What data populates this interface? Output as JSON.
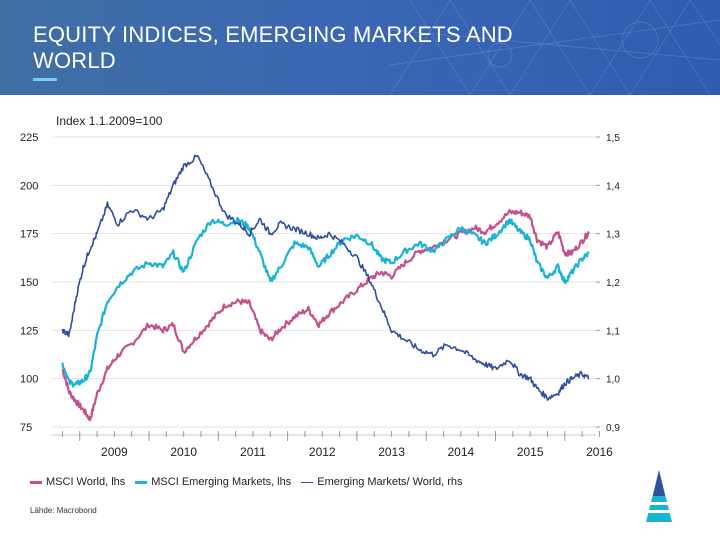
{
  "header": {
    "title_line1": "EQUITY INDICES, EMERGING MARKETS AND",
    "title_line2": "WORLD"
  },
  "chart_data": {
    "type": "line",
    "subtitle": "Index 1.1.2009=100",
    "x_tick_labels": [
      "2009",
      "2010",
      "2011",
      "2012",
      "2013",
      "2014",
      "2015",
      "2016"
    ],
    "y_left": {
      "ticks": [
        "225",
        "200",
        "175",
        "150",
        "125",
        "100",
        "75"
      ],
      "ylim": [
        75,
        225
      ]
    },
    "y_right": {
      "ticks": [
        "1,5",
        "1,4",
        "1,3",
        "1,2",
        "1,1",
        "1,0",
        "0,9"
      ],
      "ylim": [
        0.9,
        1.5
      ]
    },
    "grid": true,
    "legend_position": "bottom",
    "series": [
      {
        "name": "MSCI World, lhs",
        "color": "#c4508c",
        "axis": "left",
        "points": [
          [
            2008.75,
            105
          ],
          [
            2008.85,
            93
          ],
          [
            2008.95,
            88
          ],
          [
            2009.05,
            84
          ],
          [
            2009.15,
            79
          ],
          [
            2009.25,
            92
          ],
          [
            2009.4,
            105
          ],
          [
            2009.55,
            112
          ],
          [
            2009.75,
            118
          ],
          [
            2010.0,
            128
          ],
          [
            2010.2,
            125
          ],
          [
            2010.35,
            128
          ],
          [
            2010.5,
            114
          ],
          [
            2010.7,
            122
          ],
          [
            2010.9,
            130
          ],
          [
            2011.1,
            138
          ],
          [
            2011.3,
            140
          ],
          [
            2011.45,
            139
          ],
          [
            2011.6,
            125
          ],
          [
            2011.75,
            120
          ],
          [
            2011.9,
            126
          ],
          [
            2012.1,
            132
          ],
          [
            2012.3,
            136
          ],
          [
            2012.45,
            128
          ],
          [
            2012.6,
            134
          ],
          [
            2012.8,
            140
          ],
          [
            2013.0,
            146
          ],
          [
            2013.2,
            152
          ],
          [
            2013.35,
            155
          ],
          [
            2013.5,
            153
          ],
          [
            2013.7,
            160
          ],
          [
            2013.9,
            166
          ],
          [
            2014.1,
            168
          ],
          [
            2014.3,
            172
          ],
          [
            2014.5,
            175
          ],
          [
            2014.7,
            178
          ],
          [
            2014.85,
            176
          ],
          [
            2015.0,
            180
          ],
          [
            2015.2,
            186
          ],
          [
            2015.35,
            186
          ],
          [
            2015.5,
            184
          ],
          [
            2015.6,
            172
          ],
          [
            2015.75,
            168
          ],
          [
            2015.9,
            176
          ],
          [
            2016.0,
            165
          ],
          [
            2016.1,
            165
          ],
          [
            2016.25,
            171
          ],
          [
            2016.35,
            176
          ]
        ]
      },
      {
        "name": "MSCI Emerging Markets, lhs",
        "color": "#1ab3d6",
        "axis": "left",
        "points": [
          [
            2008.75,
            108
          ],
          [
            2008.85,
            98
          ],
          [
            2008.95,
            97
          ],
          [
            2009.05,
            99
          ],
          [
            2009.15,
            103
          ],
          [
            2009.25,
            122
          ],
          [
            2009.4,
            140
          ],
          [
            2009.55,
            148
          ],
          [
            2009.75,
            155
          ],
          [
            2010.0,
            160
          ],
          [
            2010.2,
            158
          ],
          [
            2010.35,
            165
          ],
          [
            2010.5,
            155
          ],
          [
            2010.7,
            172
          ],
          [
            2010.9,
            182
          ],
          [
            2011.1,
            180
          ],
          [
            2011.3,
            182
          ],
          [
            2011.45,
            178
          ],
          [
            2011.6,
            165
          ],
          [
            2011.75,
            150
          ],
          [
            2011.9,
            158
          ],
          [
            2012.1,
            170
          ],
          [
            2012.3,
            168
          ],
          [
            2012.45,
            158
          ],
          [
            2012.6,
            164
          ],
          [
            2012.8,
            172
          ],
          [
            2013.0,
            174
          ],
          [
            2013.2,
            170
          ],
          [
            2013.35,
            162
          ],
          [
            2013.5,
            160
          ],
          [
            2013.7,
            166
          ],
          [
            2013.9,
            170
          ],
          [
            2014.1,
            166
          ],
          [
            2014.3,
            172
          ],
          [
            2014.5,
            178
          ],
          [
            2014.7,
            174
          ],
          [
            2014.85,
            170
          ],
          [
            2015.0,
            174
          ],
          [
            2015.2,
            182
          ],
          [
            2015.35,
            176
          ],
          [
            2015.5,
            172
          ],
          [
            2015.6,
            160
          ],
          [
            2015.75,
            152
          ],
          [
            2015.9,
            158
          ],
          [
            2016.0,
            150
          ],
          [
            2016.1,
            155
          ],
          [
            2016.25,
            162
          ],
          [
            2016.35,
            165
          ]
        ]
      },
      {
        "name": "Emerging Markets/ World, rhs",
        "color": "#2f4f9a",
        "axis": "right",
        "points": [
          [
            2008.75,
            1.1
          ],
          [
            2008.85,
            1.09
          ],
          [
            2008.95,
            1.17
          ],
          [
            2009.05,
            1.23
          ],
          [
            2009.15,
            1.27
          ],
          [
            2009.25,
            1.3
          ],
          [
            2009.4,
            1.36
          ],
          [
            2009.55,
            1.32
          ],
          [
            2009.75,
            1.35
          ],
          [
            2010.0,
            1.33
          ],
          [
            2010.2,
            1.35
          ],
          [
            2010.35,
            1.4
          ],
          [
            2010.5,
            1.44
          ],
          [
            2010.7,
            1.46
          ],
          [
            2010.9,
            1.4
          ],
          [
            2011.1,
            1.34
          ],
          [
            2011.3,
            1.32
          ],
          [
            2011.45,
            1.3
          ],
          [
            2011.6,
            1.33
          ],
          [
            2011.75,
            1.3
          ],
          [
            2011.9,
            1.32
          ],
          [
            2012.1,
            1.31
          ],
          [
            2012.3,
            1.3
          ],
          [
            2012.45,
            1.29
          ],
          [
            2012.6,
            1.3
          ],
          [
            2012.8,
            1.28
          ],
          [
            2013.0,
            1.25
          ],
          [
            2013.2,
            1.2
          ],
          [
            2013.35,
            1.15
          ],
          [
            2013.5,
            1.1
          ],
          [
            2013.7,
            1.08
          ],
          [
            2013.9,
            1.06
          ],
          [
            2014.1,
            1.05
          ],
          [
            2014.3,
            1.07
          ],
          [
            2014.5,
            1.06
          ],
          [
            2014.7,
            1.04
          ],
          [
            2014.85,
            1.03
          ],
          [
            2015.0,
            1.02
          ],
          [
            2015.2,
            1.04
          ],
          [
            2015.35,
            1.01
          ],
          [
            2015.5,
            1.0
          ],
          [
            2015.6,
            0.98
          ],
          [
            2015.75,
            0.96
          ],
          [
            2015.9,
            0.97
          ],
          [
            2016.0,
            0.99
          ],
          [
            2016.1,
            1.0
          ],
          [
            2016.25,
            1.01
          ],
          [
            2016.35,
            1.0
          ]
        ]
      }
    ]
  },
  "footer": {
    "source": "Lähde: Macrobond"
  }
}
